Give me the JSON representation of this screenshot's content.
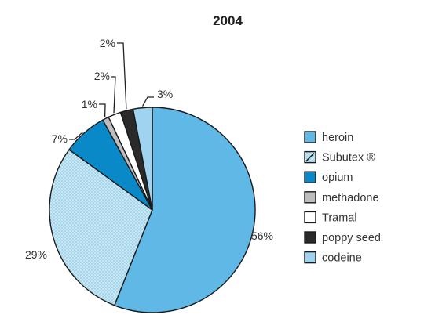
{
  "chart_data": {
    "type": "pie",
    "title": "2004",
    "slices": [
      {
        "label": "heroin",
        "value": 56,
        "data_label": "56%",
        "color": "#5fb8e6",
        "pattern": "solid"
      },
      {
        "label": "Subutex ®",
        "value": 29,
        "data_label": "29%",
        "color": "#c6e8f6",
        "pattern": "dotted"
      },
      {
        "label": "opium",
        "value": 7,
        "data_label": "7%",
        "color": "#0a89c8",
        "pattern": "solid"
      },
      {
        "label": "methadone",
        "value": 1,
        "data_label": "1%",
        "color": "#bdbdbd",
        "pattern": "solid"
      },
      {
        "label": "Tramal",
        "value": 2,
        "data_label": "2%",
        "color": "#ffffff",
        "pattern": "solid"
      },
      {
        "label": "poppy seed",
        "value": 2,
        "data_label": "2%",
        "color": "#2a2a2a",
        "pattern": "solid"
      },
      {
        "label": "codeine",
        "value": 3,
        "data_label": "3%",
        "color": "#9fd3ef",
        "pattern": "solid"
      }
    ],
    "legend_position": "right"
  }
}
